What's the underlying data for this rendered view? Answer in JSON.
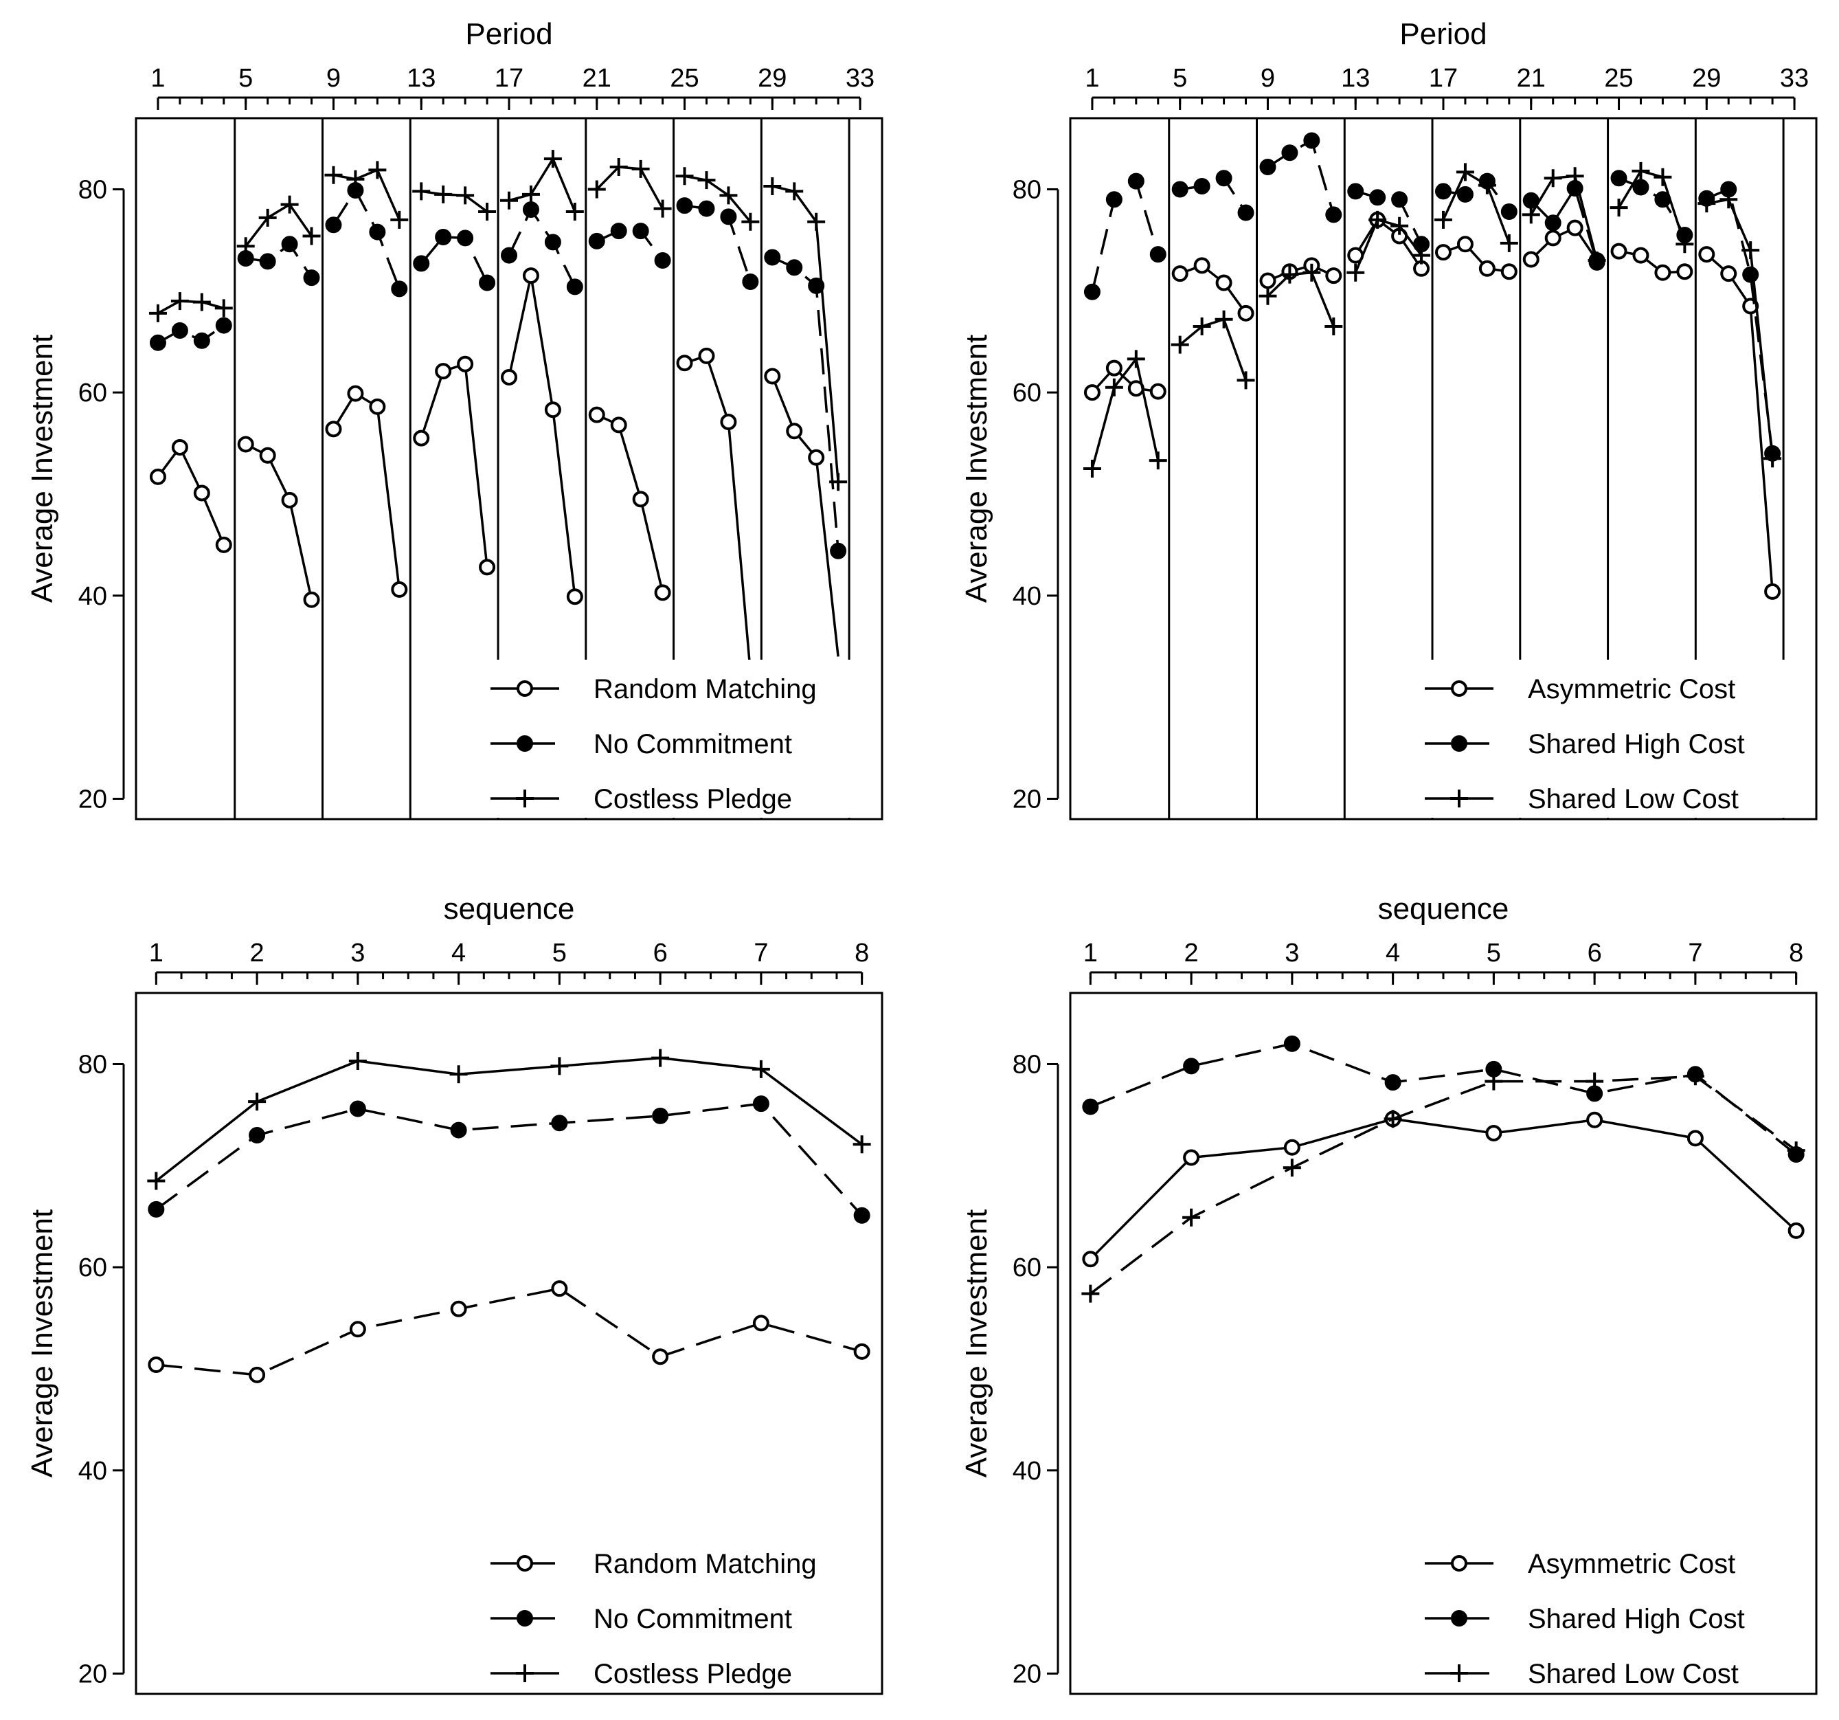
{
  "chart_data": [
    {
      "type": "line",
      "panel": "top-left",
      "xlabel": "Period",
      "ylabel": "Average Investment",
      "xlim": [
        0,
        34
      ],
      "ylim": [
        18,
        87
      ],
      "x_ticks": [
        1,
        5,
        9,
        13,
        17,
        21,
        25,
        29,
        33
      ],
      "y_ticks": [
        20,
        40,
        60,
        80
      ],
      "x_minor_step": 1,
      "x_axis_position": "top",
      "sequence_breaks": [
        4.5,
        8.5,
        12.5,
        16.5,
        20.5,
        24.5,
        28.5,
        32.5
      ],
      "legend_position": "bottom-right",
      "x": [
        1,
        2,
        3,
        4,
        5,
        6,
        7,
        8,
        9,
        10,
        11,
        12,
        13,
        14,
        15,
        16,
        17,
        18,
        19,
        20,
        21,
        22,
        23,
        24,
        25,
        26,
        27,
        28,
        29,
        30,
        31,
        32
      ],
      "series": [
        {
          "name": "Random Matching",
          "marker": "hollow-circle",
          "dash": "solid",
          "values": [
            51.7,
            54.6,
            50.1,
            45.0,
            54.9,
            53.8,
            49.4,
            39.6,
            56.4,
            59.9,
            58.6,
            40.6,
            55.5,
            62.1,
            62.8,
            42.8,
            61.5,
            71.5,
            58.3,
            39.9,
            57.8,
            56.8,
            49.5,
            40.3,
            62.9,
            63.6,
            57.1,
            32.5,
            61.6,
            56.2,
            53.6,
            34.0
          ]
        },
        {
          "name": "No Commitment",
          "marker": "filled-circle",
          "dash": "dashed",
          "values": [
            64.9,
            66.1,
            65.1,
            66.6,
            73.2,
            72.9,
            74.6,
            71.3,
            76.5,
            79.9,
            75.8,
            70.2,
            72.7,
            75.3,
            75.2,
            70.8,
            73.5,
            78.0,
            74.8,
            70.4,
            74.9,
            75.9,
            75.9,
            73.0,
            78.4,
            78.1,
            77.3,
            70.9,
            73.3,
            72.3,
            70.5,
            44.4
          ]
        },
        {
          "name": "Costless Pledge",
          "marker": "plus",
          "dash": "solid",
          "values": [
            67.8,
            69.0,
            68.9,
            68.3,
            74.4,
            77.2,
            78.5,
            75.4,
            81.4,
            81.0,
            81.9,
            77.0,
            79.8,
            79.5,
            79.4,
            77.8,
            78.9,
            79.5,
            83.0,
            77.8,
            80.0,
            82.2,
            82.0,
            78.1,
            81.3,
            80.9,
            79.4,
            76.8,
            80.3,
            79.8,
            76.8,
            51.2
          ]
        }
      ]
    },
    {
      "type": "line",
      "panel": "top-right",
      "xlabel": "Period",
      "ylabel": "Average Investment",
      "xlim": [
        0,
        34
      ],
      "ylim": [
        18,
        87
      ],
      "x_ticks": [
        1,
        5,
        9,
        13,
        17,
        21,
        25,
        29,
        33
      ],
      "y_ticks": [
        20,
        40,
        60,
        80
      ],
      "x_minor_step": 1,
      "x_axis_position": "top",
      "sequence_breaks": [
        4.5,
        8.5,
        12.5,
        16.5,
        20.5,
        24.5,
        28.5,
        32.5
      ],
      "legend_position": "bottom-right",
      "x": [
        1,
        2,
        3,
        4,
        5,
        6,
        7,
        8,
        9,
        10,
        11,
        12,
        13,
        14,
        15,
        16,
        17,
        18,
        19,
        20,
        21,
        22,
        23,
        24,
        25,
        26,
        27,
        28,
        29,
        30,
        31,
        32
      ],
      "series": [
        {
          "name": "Asymmetric Cost",
          "marker": "hollow-circle",
          "dash": "solid",
          "values": [
            60.0,
            62.4,
            60.4,
            60.1,
            71.7,
            72.5,
            70.8,
            67.8,
            71.0,
            71.9,
            72.5,
            71.5,
            73.5,
            77.0,
            75.4,
            72.2,
            73.8,
            74.6,
            72.2,
            71.9,
            73.1,
            75.2,
            76.2,
            73.0,
            73.9,
            73.5,
            71.8,
            71.9,
            73.6,
            71.7,
            68.5,
            40.4
          ]
        },
        {
          "name": "Shared High Cost",
          "marker": "filled-circle",
          "dash": "dashed",
          "values": [
            69.9,
            79.0,
            80.8,
            73.6,
            80.0,
            80.3,
            81.1,
            77.7,
            82.2,
            83.6,
            84.8,
            77.5,
            79.8,
            79.2,
            79.0,
            74.6,
            79.8,
            79.5,
            80.8,
            77.8,
            78.9,
            76.7,
            80.1,
            72.8,
            81.1,
            80.2,
            79.0,
            75.5,
            79.1,
            80.0,
            71.6,
            54.0
          ]
        },
        {
          "name": "Shared Low Cost",
          "marker": "plus",
          "dash": "solid",
          "values": [
            52.5,
            60.5,
            63.3,
            53.3,
            64.7,
            66.5,
            67.2,
            61.2,
            69.5,
            71.6,
            71.8,
            66.5,
            71.8,
            77.0,
            76.4,
            73.5,
            77.0,
            81.7,
            80.4,
            74.7,
            77.5,
            81.1,
            81.3,
            73.0,
            78.2,
            81.8,
            81.2,
            74.6,
            78.6,
            79.0,
            74.0,
            53.5
          ]
        }
      ]
    },
    {
      "type": "line",
      "panel": "bottom-left",
      "xlabel": "sequence",
      "ylabel": "Average Investment",
      "xlim": [
        0.8,
        8.2
      ],
      "ylim": [
        18,
        87
      ],
      "x_ticks": [
        1,
        2,
        3,
        4,
        5,
        6,
        7,
        8
      ],
      "y_ticks": [
        20,
        40,
        60,
        80
      ],
      "x_minor_step": 0.25,
      "x_axis_position": "top",
      "legend_position": "bottom-right",
      "x": [
        1,
        2,
        3,
        4,
        5,
        6,
        7,
        8
      ],
      "series": [
        {
          "name": "Random Matching",
          "marker": "hollow-circle",
          "dash": "dashed",
          "values": [
            50.4,
            49.4,
            53.9,
            55.9,
            57.9,
            51.2,
            54.5,
            51.7
          ]
        },
        {
          "name": "No Commitment",
          "marker": "filled-circle",
          "dash": "dashed",
          "values": [
            65.7,
            73.0,
            75.6,
            73.5,
            74.2,
            74.9,
            76.1,
            65.1
          ]
        },
        {
          "name": "Costless Pledge",
          "marker": "plus",
          "dash": "solid",
          "values": [
            68.5,
            76.3,
            80.3,
            79.0,
            79.8,
            80.6,
            79.5,
            72.1
          ]
        }
      ]
    },
    {
      "type": "line",
      "panel": "bottom-right",
      "xlabel": "sequence",
      "ylabel": "Average Investment",
      "xlim": [
        0.8,
        8.2
      ],
      "ylim": [
        18,
        87
      ],
      "x_ticks": [
        1,
        2,
        3,
        4,
        5,
        6,
        7,
        8
      ],
      "y_ticks": [
        20,
        40,
        60,
        80
      ],
      "x_minor_step": 0.25,
      "x_axis_position": "top",
      "legend_position": "bottom-right",
      "x": [
        1,
        2,
        3,
        4,
        5,
        6,
        7,
        8
      ],
      "series": [
        {
          "name": "Asymmetric Cost",
          "marker": "hollow-circle",
          "dash": "solid",
          "values": [
            60.8,
            70.8,
            71.8,
            74.6,
            73.2,
            74.5,
            72.7,
            63.6
          ]
        },
        {
          "name": "Shared High Cost",
          "marker": "filled-circle",
          "dash": "dashed",
          "values": [
            75.8,
            79.8,
            82.0,
            78.2,
            79.5,
            77.1,
            79.0,
            71.1
          ]
        },
        {
          "name": "Shared Low Cost",
          "marker": "plus",
          "dash": "dashed",
          "values": [
            57.4,
            64.9,
            69.8,
            74.6,
            78.3,
            78.3,
            78.8,
            71.5
          ]
        }
      ]
    }
  ]
}
